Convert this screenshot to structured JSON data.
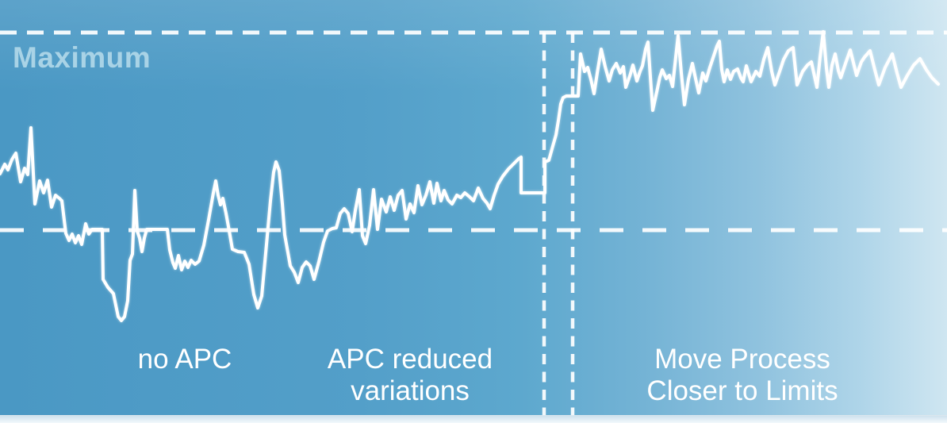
{
  "labels": {
    "maximum": "Maximum",
    "region_no_apc": "no APC",
    "region_apc_reduced_line1": "APC reduced",
    "region_apc_reduced_line2": "variations",
    "region_move_line1": "Move Process",
    "region_move_line2": "Closer to Limits"
  },
  "colors": {
    "background_left": "#4a98c4",
    "background_right": "#cfe6f1",
    "signal_line": "#ffffff",
    "dashed_lines": "#ffffff",
    "maximum_text": "#a9d3e6",
    "region_label_text": "#ffffff",
    "bottom_strip": "#e9f3f9"
  },
  "chart_data": {
    "type": "line",
    "title": "",
    "xlabel": "",
    "ylabel": "",
    "description": "Conceptual APC benefit chart: process variable vs time. No numeric axes; coordinates are canvas pixels (1194x533, y increases downward).",
    "units": "pixels",
    "grid": false,
    "legend": false,
    "maximum_limit_line": {
      "label": "Maximum",
      "y": 41,
      "x_range": [
        0,
        1194
      ],
      "dash": [
        21,
        13
      ],
      "width": 5
    },
    "center_line": {
      "y": 290,
      "x_range": [
        0,
        1194
      ],
      "dash": [
        30,
        24
      ],
      "width": 5
    },
    "vertical_dividers": {
      "x": [
        686,
        722
      ],
      "y_range": [
        41,
        524
      ],
      "dash": [
        13,
        9.5
      ],
      "width": 4.5
    },
    "regions": [
      {
        "label": "no APC",
        "label_center_x": 233
      },
      {
        "label": "APC reduced variations",
        "label_center_x": 517
      },
      {
        "label": "Move Process Closer to Limits",
        "label_center_x": 936
      }
    ],
    "series": [
      {
        "name": "process-variable",
        "color": "#ffffff",
        "stroke_width": 4,
        "points": [
          [
            0,
            219
          ],
          [
            6,
            207
          ],
          [
            10,
            214
          ],
          [
            15,
            201
          ],
          [
            20,
            193
          ],
          [
            26,
            229
          ],
          [
            31,
            212
          ],
          [
            35,
            220
          ],
          [
            39,
            161
          ],
          [
            44,
            257
          ],
          [
            50,
            228
          ],
          [
            55,
            243
          ],
          [
            60,
            227
          ],
          [
            65,
            261
          ],
          [
            70,
            246
          ],
          [
            75,
            250
          ],
          [
            78,
            253
          ],
          [
            83,
            294
          ],
          [
            87,
            303
          ],
          [
            91,
            295
          ],
          [
            95,
            306
          ],
          [
            99,
            297
          ],
          [
            103,
            308
          ],
          [
            108,
            282
          ],
          [
            112,
            295
          ],
          [
            116,
            289
          ],
          [
            129,
            289
          ],
          [
            130,
            352
          ],
          [
            136,
            362
          ],
          [
            143,
            370
          ],
          [
            149,
            399
          ],
          [
            153,
            404
          ],
          [
            157,
            399
          ],
          [
            161,
            379
          ],
          [
            164,
            328
          ],
          [
            167,
            320
          ],
          [
            170,
            240
          ],
          [
            173,
            291
          ],
          [
            176,
            300
          ],
          [
            179,
            317
          ],
          [
            182,
            300
          ],
          [
            185,
            289
          ],
          [
            211,
            289
          ],
          [
            214,
            315
          ],
          [
            218,
            331
          ],
          [
            221,
            338
          ],
          [
            225,
            322
          ],
          [
            229,
            340
          ],
          [
            233,
            329
          ],
          [
            237,
            337
          ],
          [
            241,
            328
          ],
          [
            246,
            333
          ],
          [
            251,
            329
          ],
          [
            257,
            309
          ],
          [
            263,
            277
          ],
          [
            269,
            243
          ],
          [
            272,
            228
          ],
          [
            275,
            246
          ],
          [
            278,
            258
          ],
          [
            281,
            250
          ],
          [
            285,
            269
          ],
          [
            289,
            291
          ],
          [
            293,
            314
          ],
          [
            300,
            317
          ],
          [
            308,
            318
          ],
          [
            314,
            333
          ],
          [
            320,
            371
          ],
          [
            325,
            388
          ],
          [
            330,
            373
          ],
          [
            336,
            308
          ],
          [
            341,
            253
          ],
          [
            345,
            217
          ],
          [
            348,
            204
          ],
          [
            352,
            215
          ],
          [
            356,
            257
          ],
          [
            359,
            296
          ],
          [
            366,
            335
          ],
          [
            371,
            343
          ],
          [
            376,
            356
          ],
          [
            381,
            337
          ],
          [
            386,
            330
          ],
          [
            391,
            335
          ],
          [
            396,
            352
          ],
          [
            402,
            330
          ],
          [
            408,
            305
          ],
          [
            413,
            291
          ],
          [
            419,
            288
          ],
          [
            424,
            287
          ],
          [
            429,
            269
          ],
          [
            434,
            263
          ],
          [
            439,
            269
          ],
          [
            444,
            292
          ],
          [
            448,
            265
          ],
          [
            453,
            239
          ],
          [
            457,
            297
          ],
          [
            461,
            307
          ],
          [
            466,
            284
          ],
          [
            471,
            239
          ],
          [
            476,
            289
          ],
          [
            481,
            251
          ],
          [
            487,
            267
          ],
          [
            492,
            248
          ],
          [
            497,
            265
          ],
          [
            502,
            246
          ],
          [
            507,
            240
          ],
          [
            512,
            276
          ],
          [
            517,
            257
          ],
          [
            522,
            268
          ],
          [
            527,
            234
          ],
          [
            532,
            258
          ],
          [
            537,
            246
          ],
          [
            542,
            229
          ],
          [
            547,
            256
          ],
          [
            551,
            231
          ],
          [
            556,
            253
          ],
          [
            560,
            240
          ],
          [
            565,
            252
          ],
          [
            570,
            257
          ],
          [
            576,
            246
          ],
          [
            581,
            249
          ],
          [
            586,
            243
          ],
          [
            592,
            248
          ],
          [
            597,
            253
          ],
          [
            603,
            237
          ],
          [
            609,
            250
          ],
          [
            614,
            256
          ],
          [
            618,
            263
          ],
          [
            623,
            246
          ],
          [
            628,
            232
          ],
          [
            634,
            222
          ],
          [
            641,
            213
          ],
          [
            648,
            206
          ],
          [
            654,
            200
          ],
          [
            657,
            198
          ],
          [
            657,
            243
          ],
          [
            687,
            243
          ],
          [
            687,
            204
          ],
          [
            692,
            202
          ],
          [
            697,
            184
          ],
          [
            701,
            170
          ],
          [
            704,
            152
          ],
          [
            707,
            131
          ],
          [
            710,
            123
          ],
          [
            714,
            121
          ],
          [
            729,
            121
          ],
          [
            732,
            68
          ],
          [
            737,
            90
          ],
          [
            741,
            85
          ],
          [
            745,
            100
          ],
          [
            749,
            118
          ],
          [
            753,
            92
          ],
          [
            758,
            62
          ],
          [
            763,
            84
          ],
          [
            768,
            102
          ],
          [
            772,
            88
          ],
          [
            777,
            80
          ],
          [
            782,
            92
          ],
          [
            786,
            84
          ],
          [
            789,
            110
          ],
          [
            794,
            96
          ],
          [
            798,
            82
          ],
          [
            803,
            102
          ],
          [
            807,
            90
          ],
          [
            810,
            83
          ],
          [
            814,
            62
          ],
          [
            817,
            53
          ],
          [
            820,
            97
          ],
          [
            823,
            139
          ],
          [
            828,
            116
          ],
          [
            832,
            97
          ],
          [
            835,
            88
          ],
          [
            840,
            99
          ],
          [
            844,
            95
          ],
          [
            848,
            109
          ],
          [
            852,
            72
          ],
          [
            855,
            45
          ],
          [
            859,
            92
          ],
          [
            863,
            132
          ],
          [
            868,
            100
          ],
          [
            873,
            80
          ],
          [
            877,
            99
          ],
          [
            881,
            117
          ],
          [
            886,
            92
          ],
          [
            890,
            102
          ],
          [
            895,
            85
          ],
          [
            900,
            70
          ],
          [
            904,
            58
          ],
          [
            907,
            52
          ],
          [
            910,
            88
          ],
          [
            913,
            103
          ],
          [
            917,
            88
          ],
          [
            921,
            100
          ],
          [
            925,
            90
          ],
          [
            930,
            87
          ],
          [
            934,
            98
          ],
          [
            937,
            103
          ],
          [
            941,
            83
          ],
          [
            947,
            103
          ],
          [
            953,
            90
          ],
          [
            958,
            96
          ],
          [
            963,
            75
          ],
          [
            968,
            60
          ],
          [
            973,
            90
          ],
          [
            977,
            107
          ],
          [
            983,
            90
          ],
          [
            988,
            75
          ],
          [
            994,
            64
          ],
          [
            1000,
            60
          ],
          [
            1005,
            107
          ],
          [
            1012,
            90
          ],
          [
            1018,
            82
          ],
          [
            1023,
            78
          ],
          [
            1030,
            110
          ],
          [
            1034,
            72
          ],
          [
            1038,
            40
          ],
          [
            1042,
            86
          ],
          [
            1045,
            110
          ],
          [
            1049,
            82
          ],
          [
            1053,
            68
          ],
          [
            1057,
            89
          ],
          [
            1060,
            98
          ],
          [
            1066,
            80
          ],
          [
            1072,
            63
          ],
          [
            1080,
            95
          ],
          [
            1086,
            78
          ],
          [
            1090,
            72
          ],
          [
            1097,
            64
          ],
          [
            1103,
            88
          ],
          [
            1108,
            107
          ],
          [
            1116,
            85
          ],
          [
            1125,
            68
          ],
          [
            1131,
            92
          ],
          [
            1136,
            110
          ],
          [
            1144,
            95
          ],
          [
            1152,
            82
          ],
          [
            1160,
            74
          ],
          [
            1168,
            88
          ],
          [
            1175,
            98
          ],
          [
            1183,
            106
          ]
        ]
      }
    ]
  }
}
